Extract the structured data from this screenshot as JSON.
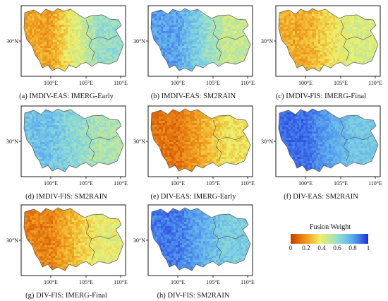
{
  "axes": {
    "lat_label": "30°N",
    "lon_labels": [
      "100°E",
      "105°E",
      "110°E"
    ]
  },
  "panels": [
    {
      "caption": "(a) IMDIV-EAS: IMERG-Early",
      "west": 0.22,
      "east": 0.6,
      "noise": 0.07
    },
    {
      "caption": "(b) IMDIV-EAS: SM2RAIN",
      "west": 0.8,
      "east": 0.48,
      "noise": 0.07
    },
    {
      "caption": "(c) IMDIV-FIS: IMERG-Final",
      "west": 0.24,
      "east": 0.44,
      "noise": 0.07
    },
    {
      "caption": "(d) IMDIV-FIS: SM2RAIN",
      "west": 0.72,
      "east": 0.54,
      "noise": 0.07
    },
    {
      "caption": "(e) DIV-EAS: IMERG-Early",
      "west": 0.12,
      "east": 0.35,
      "noise": 0.06
    },
    {
      "caption": "(f) DIV-EAS: SM2RAIN",
      "west": 0.9,
      "east": 0.7,
      "noise": 0.05
    },
    {
      "caption": "(g) DIV-FIS: IMERG-Final",
      "west": 0.15,
      "east": 0.4,
      "noise": 0.07
    },
    {
      "caption": "(h) DIV-FIS: SM2RAIN",
      "west": 0.88,
      "east": 0.68,
      "noise": 0.06
    }
  ],
  "legend": {
    "title": "Fusion Weight",
    "ticks": [
      "0",
      "0.2",
      "0.4",
      "0.6",
      "0.8",
      "1"
    ],
    "range": [
      0,
      1
    ]
  }
}
